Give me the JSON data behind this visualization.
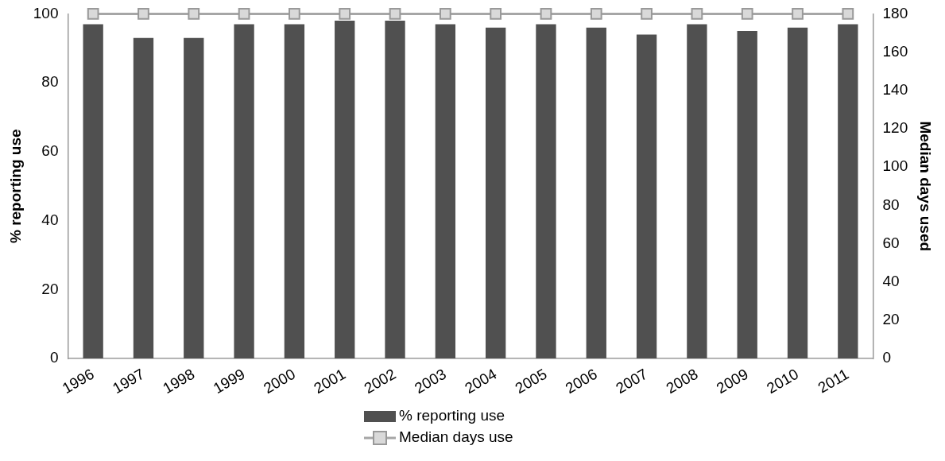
{
  "chart_data": {
    "type": "bar",
    "categories": [
      "1996",
      "1997",
      "1998",
      "1999",
      "2000",
      "2001",
      "2002",
      "2003",
      "2004",
      "2005",
      "2006",
      "2007",
      "2008",
      "2009",
      "2010",
      "2011"
    ],
    "series": [
      {
        "name": "% reporting use",
        "color": "#505050",
        "values": [
          97,
          93,
          93,
          97,
          97,
          98,
          98,
          97,
          96,
          97,
          96,
          94,
          97,
          95,
          96,
          97
        ]
      },
      {
        "name": "Median days use",
        "type": "line",
        "axis": "y2",
        "color": "#a6a6a6",
        "marker": "square",
        "values": [
          180,
          180,
          180,
          180,
          180,
          180,
          180,
          180,
          180,
          180,
          180,
          180,
          180,
          180,
          180,
          180
        ]
      }
    ],
    "ylabel": "% reporting use",
    "y2label": "Median days used",
    "ylim": [
      0,
      100
    ],
    "yticks": [
      0,
      20,
      40,
      60,
      80,
      100
    ],
    "y2lim": [
      0,
      180
    ],
    "y2ticks": [
      0,
      20,
      40,
      60,
      80,
      100,
      120,
      140,
      160,
      180
    ],
    "grid": false,
    "legend": "bottom"
  }
}
